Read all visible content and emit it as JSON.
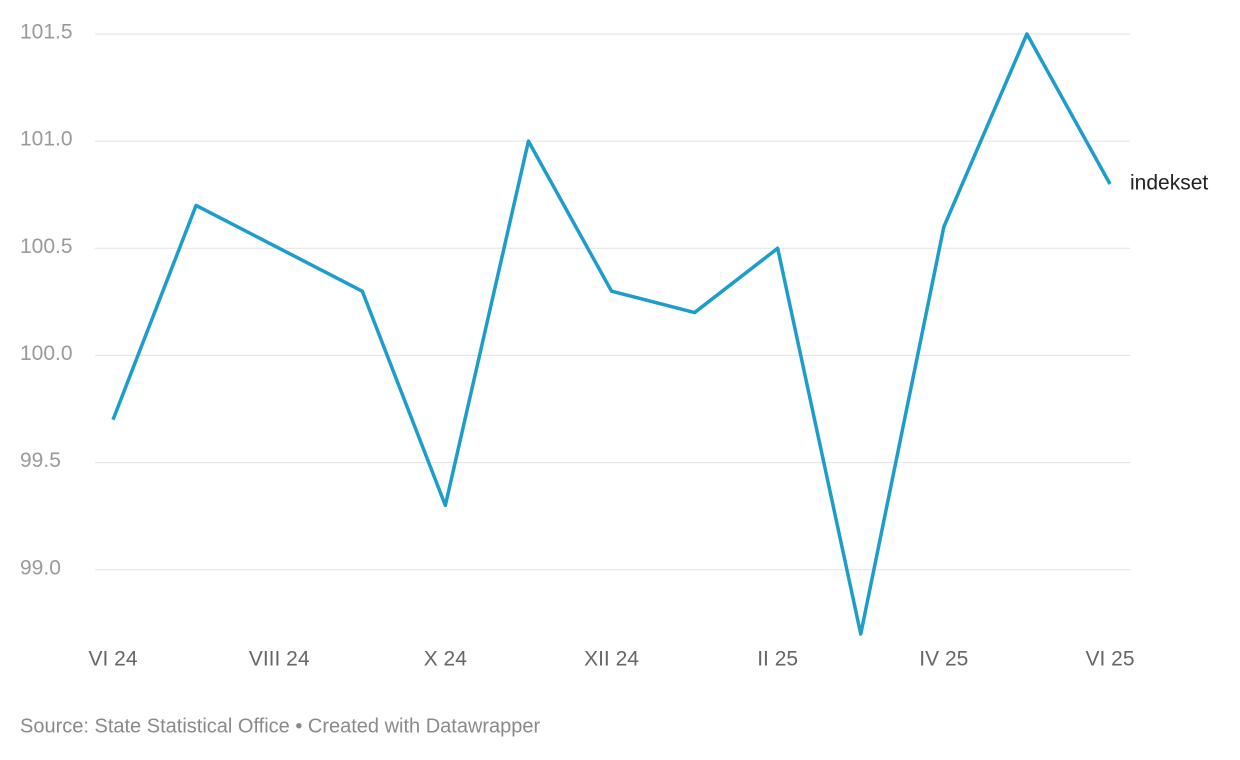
{
  "chart_data": {
    "type": "line",
    "categories": [
      "VI 24",
      null,
      "VIII 24",
      null,
      "X 24",
      null,
      "XII 24",
      null,
      "II 25",
      null,
      "IV 25",
      null,
      "VI 25"
    ],
    "series": [
      {
        "name": "indekset",
        "color": "#1d9dca",
        "values": [
          99.7,
          100.7,
          100.5,
          100.3,
          99.3,
          101.0,
          100.3,
          100.2,
          100.5,
          98.7,
          100.6,
          101.5,
          100.8
        ]
      }
    ],
    "ylim": [
      98.7,
      101.5
    ],
    "yticks": [
      {
        "value": 99,
        "label": "99.0"
      },
      99.5,
      {
        "value": 100,
        "label": "100.0"
      },
      100.5,
      {
        "value": 101,
        "label": "101.0"
      },
      101.5
    ],
    "grid": true,
    "source": "Source: State Statistical Office • Created with Datawrapper"
  }
}
